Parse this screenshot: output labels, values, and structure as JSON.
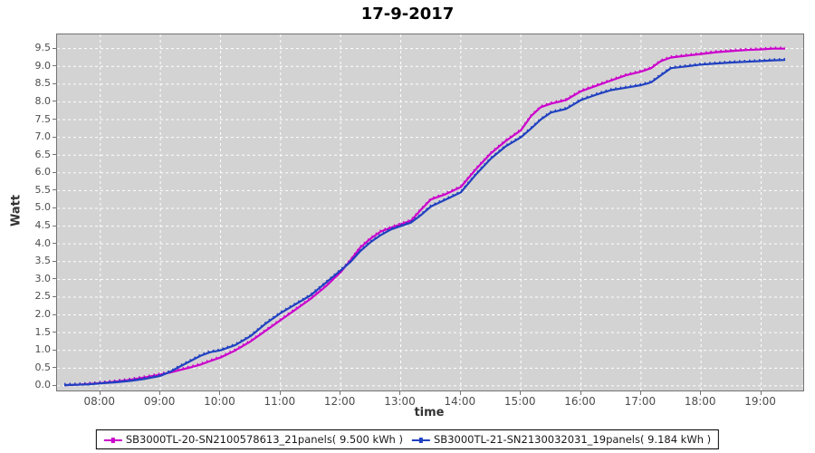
{
  "title": "17-9-2017",
  "colors": {
    "plot_background": "#d3d3d3",
    "grid": "#ffffff",
    "plot_border": "#737373",
    "tick_text": "#4d4d4d",
    "series1": "#cc00cc",
    "series2": "#2040c0",
    "legend_border": "#000000"
  },
  "chart_data": {
    "type": "line",
    "title": "17-9-2017",
    "xlabel": "time",
    "ylabel": "Watt",
    "xlim": [
      7.28,
      19.7
    ],
    "ylim": [
      -0.13,
      9.9
    ],
    "grid": "white dashed, hourly vertical / 0.5 horizontal",
    "legend_position": "bottom",
    "x_ticks": [
      {
        "v": 8,
        "label": "08:00"
      },
      {
        "v": 9,
        "label": "09:00"
      },
      {
        "v": 10,
        "label": "10:00"
      },
      {
        "v": 11,
        "label": "11:00"
      },
      {
        "v": 12,
        "label": "12:00"
      },
      {
        "v": 13,
        "label": "13:00"
      },
      {
        "v": 14,
        "label": "14:00"
      },
      {
        "v": 15,
        "label": "15:00"
      },
      {
        "v": 16,
        "label": "16:00"
      },
      {
        "v": 17,
        "label": "17:00"
      },
      {
        "v": 18,
        "label": "18:00"
      },
      {
        "v": 19,
        "label": "19:00"
      }
    ],
    "y_ticks": [
      {
        "v": 0.0,
        "label": "0.0"
      },
      {
        "v": 0.5,
        "label": "0.5"
      },
      {
        "v": 1.0,
        "label": "1.0"
      },
      {
        "v": 1.5,
        "label": "1.5"
      },
      {
        "v": 2.0,
        "label": "2.0"
      },
      {
        "v": 2.5,
        "label": "2.5"
      },
      {
        "v": 3.0,
        "label": "3.0"
      },
      {
        "v": 3.5,
        "label": "3.5"
      },
      {
        "v": 4.0,
        "label": "4.0"
      },
      {
        "v": 4.5,
        "label": "4.5"
      },
      {
        "v": 5.0,
        "label": "5.0"
      },
      {
        "v": 5.5,
        "label": "5.5"
      },
      {
        "v": 6.0,
        "label": "6.0"
      },
      {
        "v": 6.5,
        "label": "6.5"
      },
      {
        "v": 7.0,
        "label": "7.0"
      },
      {
        "v": 7.5,
        "label": "7.5"
      },
      {
        "v": 8.0,
        "label": "8.0"
      },
      {
        "v": 8.5,
        "label": "8.5"
      },
      {
        "v": 9.0,
        "label": "9.0"
      },
      {
        "v": 9.5,
        "label": "9.5"
      }
    ],
    "x": [
      7.4,
      7.6,
      7.8,
      8.0,
      8.25,
      8.5,
      8.75,
      9.0,
      9.17,
      9.33,
      9.5,
      9.67,
      9.83,
      10.0,
      10.25,
      10.5,
      10.75,
      11.0,
      11.25,
      11.5,
      11.75,
      12.0,
      12.17,
      12.33,
      12.5,
      12.67,
      12.83,
      13.0,
      13.17,
      13.33,
      13.5,
      13.75,
      14.0,
      14.25,
      14.5,
      14.75,
      15.0,
      15.17,
      15.33,
      15.5,
      15.75,
      16.0,
      16.25,
      16.5,
      16.75,
      17.0,
      17.17,
      17.33,
      17.5,
      17.75,
      18.0,
      18.25,
      18.5,
      18.75,
      19.0,
      19.2,
      19.4
    ],
    "series": [
      {
        "name": "SB3000TL-20-SN2100578613_21panels( 9.500 kWh )",
        "color": "#cc00cc",
        "total_kwh": "9.500",
        "values": [
          0.02,
          0.03,
          0.05,
          0.08,
          0.12,
          0.17,
          0.24,
          0.32,
          0.38,
          0.45,
          0.52,
          0.6,
          0.7,
          0.8,
          1.0,
          1.25,
          1.55,
          1.85,
          2.15,
          2.45,
          2.8,
          3.2,
          3.55,
          3.9,
          4.15,
          4.35,
          4.45,
          4.55,
          4.65,
          4.95,
          5.25,
          5.4,
          5.6,
          6.1,
          6.55,
          6.9,
          7.2,
          7.6,
          7.85,
          7.95,
          8.05,
          8.3,
          8.45,
          8.6,
          8.75,
          8.85,
          8.95,
          9.15,
          9.25,
          9.3,
          9.35,
          9.4,
          9.43,
          9.46,
          9.48,
          9.5,
          9.5
        ]
      },
      {
        "name": "SB3000TL-21-SN2130032031_19panels( 9.184 kWh )",
        "color": "#2040c0",
        "total_kwh": "9.184",
        "values": [
          0.02,
          0.03,
          0.04,
          0.07,
          0.1,
          0.14,
          0.2,
          0.28,
          0.4,
          0.55,
          0.7,
          0.85,
          0.95,
          1.0,
          1.15,
          1.4,
          1.75,
          2.05,
          2.3,
          2.55,
          2.9,
          3.25,
          3.5,
          3.8,
          4.05,
          4.25,
          4.4,
          4.5,
          4.6,
          4.8,
          5.05,
          5.25,
          5.45,
          5.95,
          6.4,
          6.75,
          7.0,
          7.25,
          7.5,
          7.7,
          7.8,
          8.05,
          8.2,
          8.33,
          8.4,
          8.47,
          8.55,
          8.75,
          8.95,
          9.0,
          9.05,
          9.08,
          9.11,
          9.13,
          9.15,
          9.17,
          9.18
        ]
      }
    ]
  }
}
